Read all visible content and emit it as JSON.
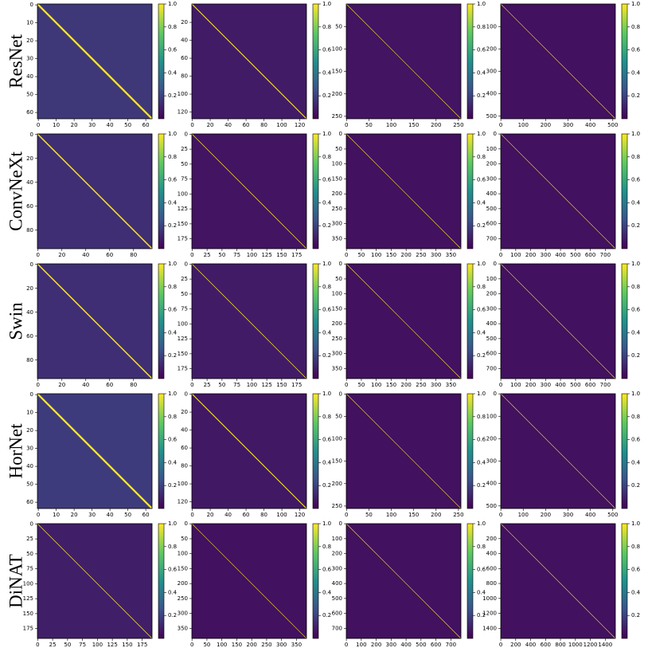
{
  "row_labels": [
    "ResNet",
    "ConvNeXt",
    "Swin",
    "HorNet",
    "DiNAT"
  ],
  "colormap": [
    "#440154",
    "#3b528b",
    "#21918c",
    "#5ec962",
    "#fde725"
  ],
  "chart_data": [
    {
      "type": "heatmap",
      "xlim": [
        -0.5,
        63.5
      ],
      "ylim": [
        -0.5,
        63.5
      ],
      "invert_y": true,
      "xticks": [
        0,
        10,
        20,
        30,
        40,
        50,
        60
      ],
      "yticks": [
        0,
        10,
        20,
        30,
        40,
        50,
        60
      ],
      "clim": [
        0,
        1
      ],
      "cticks": [
        0.2,
        0.4,
        0.6,
        0.8,
        {
          "value": 1,
          "label": "1.0"
        }
      ],
      "background": 0.17,
      "diagonal": 1
    },
    {
      "type": "heatmap",
      "xlim": [
        -0.5,
        127.5
      ],
      "ylim": [
        -0.5,
        127.5
      ],
      "invert_y": true,
      "xticks": [
        0,
        20,
        40,
        60,
        80,
        100,
        120
      ],
      "yticks": [
        20,
        40,
        60,
        80,
        100,
        120
      ],
      "clim": [
        0,
        1
      ],
      "cticks": [
        0.2,
        0.4,
        0.6,
        0.8,
        {
          "value": 1,
          "label": "1.0"
        }
      ],
      "background": 0.08,
      "diagonal": 1
    },
    {
      "type": "heatmap",
      "xlim": [
        -0.5,
        255.5
      ],
      "ylim": [
        -0.5,
        255.5
      ],
      "invert_y": true,
      "xticks": [
        0,
        50,
        100,
        150,
        200,
        250
      ],
      "yticks": [
        50,
        100,
        150,
        200,
        250
      ],
      "clim": [
        0,
        1
      ],
      "cticks": [
        0.2,
        0.4,
        0.6,
        0.8,
        {
          "value": 1,
          "label": "1.0"
        }
      ],
      "background": 0.06,
      "diagonal": 1
    },
    {
      "type": "heatmap",
      "xlim": [
        -0.5,
        511.5
      ],
      "ylim": [
        -0.5,
        511.5
      ],
      "invert_y": true,
      "xticks": [
        0,
        100,
        200,
        300,
        400,
        500
      ],
      "yticks": [
        100,
        200,
        300,
        400,
        500
      ],
      "clim": [
        0,
        1
      ],
      "cticks": [
        0.2,
        0.4,
        0.6,
        0.8,
        {
          "value": 1,
          "label": "1.0"
        }
      ],
      "background": 0.05,
      "diagonal": 1
    },
    {
      "type": "heatmap",
      "xlim": [
        -0.5,
        95.5
      ],
      "ylim": [
        -0.5,
        95.5
      ],
      "invert_y": true,
      "xticks": [
        0,
        20,
        40,
        60,
        80
      ],
      "yticks": [
        0,
        20,
        40,
        60,
        80
      ],
      "clim": [
        0,
        1
      ],
      "cticks": [
        0.2,
        0.4,
        0.6,
        0.8,
        {
          "value": 1,
          "label": "1.0"
        }
      ],
      "background": 0.14,
      "diagonal": 1
    },
    {
      "type": "heatmap",
      "xlim": [
        -0.5,
        191.5
      ],
      "ylim": [
        -0.5,
        191.5
      ],
      "invert_y": true,
      "xticks": [
        0,
        25,
        50,
        75,
        100,
        125,
        150,
        175
      ],
      "yticks": [
        0,
        25,
        50,
        75,
        100,
        125,
        150,
        175
      ],
      "clim": [
        0,
        1
      ],
      "cticks": [
        0.2,
        0.4,
        0.6,
        0.8,
        {
          "value": 1,
          "label": "1.0"
        }
      ],
      "background": 0.06,
      "diagonal": 1
    },
    {
      "type": "heatmap",
      "xlim": [
        -0.5,
        383.5
      ],
      "ylim": [
        -0.5,
        383.5
      ],
      "invert_y": true,
      "xticks": [
        0,
        50,
        100,
        150,
        200,
        250,
        300,
        350
      ],
      "yticks": [
        0,
        50,
        100,
        150,
        200,
        250,
        300,
        350
      ],
      "clim": [
        0,
        1
      ],
      "cticks": [
        0.2,
        0.4,
        0.6,
        0.8,
        {
          "value": 1,
          "label": "1.0"
        }
      ],
      "background": 0.05,
      "diagonal": 1
    },
    {
      "type": "heatmap",
      "xlim": [
        -0.5,
        767.5
      ],
      "ylim": [
        -0.5,
        767.5
      ],
      "invert_y": true,
      "xticks": [
        0,
        100,
        200,
        300,
        400,
        500,
        600,
        700
      ],
      "yticks": [
        0,
        100,
        200,
        300,
        400,
        500,
        600,
        700
      ],
      "clim": [
        0,
        1
      ],
      "cticks": [
        0.2,
        0.4,
        0.6,
        0.8,
        {
          "value": 1,
          "label": "1.0"
        }
      ],
      "background": 0.05,
      "diagonal": 1
    },
    {
      "type": "heatmap",
      "xlim": [
        -0.5,
        95.5
      ],
      "ylim": [
        -0.5,
        95.5
      ],
      "invert_y": true,
      "xticks": [
        0,
        20,
        40,
        60,
        80
      ],
      "yticks": [
        0,
        20,
        40,
        60,
        80
      ],
      "clim": [
        0,
        1
      ],
      "cticks": [
        0.2,
        0.4,
        0.6,
        0.8,
        {
          "value": 1,
          "label": "1.0"
        }
      ],
      "background": 0.14,
      "diagonal": 1
    },
    {
      "type": "heatmap",
      "xlim": [
        -0.5,
        191.5
      ],
      "ylim": [
        -0.5,
        191.5
      ],
      "invert_y": true,
      "xticks": [
        0,
        25,
        50,
        75,
        100,
        125,
        150,
        175
      ],
      "yticks": [
        0,
        25,
        50,
        75,
        100,
        125,
        150,
        175
      ],
      "clim": [
        0,
        1
      ],
      "cticks": [
        0.2,
        0.4,
        0.6,
        0.8,
        {
          "value": 1,
          "label": "1.0"
        }
      ],
      "background": 0.08,
      "diagonal": 1
    },
    {
      "type": "heatmap",
      "xlim": [
        -0.5,
        383.5
      ],
      "ylim": [
        -0.5,
        383.5
      ],
      "invert_y": true,
      "xticks": [
        0,
        50,
        100,
        150,
        200,
        250,
        300,
        350
      ],
      "yticks": [
        0,
        50,
        100,
        150,
        200,
        250,
        300,
        350
      ],
      "clim": [
        0,
        1
      ],
      "cticks": [
        0.2,
        0.4,
        0.6,
        0.8,
        {
          "value": 1,
          "label": "1.0"
        }
      ],
      "background": 0.05,
      "diagonal": 1
    },
    {
      "type": "heatmap",
      "xlim": [
        -0.5,
        767.5
      ],
      "ylim": [
        -0.5,
        767.5
      ],
      "invert_y": true,
      "xticks": [
        0,
        100,
        200,
        300,
        400,
        500,
        600,
        700
      ],
      "yticks": [
        0,
        100,
        200,
        300,
        400,
        500,
        600,
        700
      ],
      "clim": [
        0,
        1
      ],
      "cticks": [
        0.2,
        0.4,
        0.6,
        0.8,
        {
          "value": 1,
          "label": "1.0"
        }
      ],
      "background": 0.05,
      "diagonal": 1
    },
    {
      "type": "heatmap",
      "xlim": [
        -0.5,
        63.5
      ],
      "ylim": [
        -0.5,
        63.5
      ],
      "invert_y": true,
      "xticks": [
        0,
        10,
        20,
        30,
        40,
        50,
        60
      ],
      "yticks": [
        0,
        10,
        20,
        30,
        40,
        50,
        60
      ],
      "clim": [
        0,
        1
      ],
      "cticks": [
        0.2,
        0.4,
        0.6,
        0.8,
        {
          "value": 1,
          "label": "1.0"
        }
      ],
      "background": 0.18,
      "diagonal": 1
    },
    {
      "type": "heatmap",
      "xlim": [
        -0.5,
        127.5
      ],
      "ylim": [
        -0.5,
        127.5
      ],
      "invert_y": true,
      "xticks": [
        0,
        20,
        40,
        60,
        80,
        100,
        120
      ],
      "yticks": [
        0,
        20,
        40,
        60,
        80,
        100,
        120
      ],
      "clim": [
        0,
        1
      ],
      "cticks": [
        0.2,
        0.4,
        0.6,
        0.8,
        {
          "value": 1,
          "label": "1.0"
        }
      ],
      "background": 0.07,
      "diagonal": 1
    },
    {
      "type": "heatmap",
      "xlim": [
        -0.5,
        255.5
      ],
      "ylim": [
        -0.5,
        255.5
      ],
      "invert_y": true,
      "xticks": [
        0,
        50,
        100,
        150,
        200,
        250
      ],
      "yticks": [
        0,
        50,
        100,
        150,
        200,
        250
      ],
      "clim": [
        0,
        1
      ],
      "cticks": [
        0.2,
        0.4,
        0.6,
        0.8,
        {
          "value": 1,
          "label": "1.0"
        }
      ],
      "background": 0.05,
      "diagonal": 1
    },
    {
      "type": "heatmap",
      "xlim": [
        -0.5,
        511.5
      ],
      "ylim": [
        -0.5,
        511.5
      ],
      "invert_y": true,
      "xticks": [
        0,
        100,
        200,
        300,
        400,
        500
      ],
      "yticks": [
        0,
        100,
        200,
        300,
        400,
        500
      ],
      "clim": [
        0,
        1
      ],
      "cticks": [
        0.2,
        0.4,
        0.6,
        0.8,
        {
          "value": 1,
          "label": "1.0"
        }
      ],
      "background": 0.05,
      "diagonal": 1
    },
    {
      "type": "heatmap",
      "xlim": [
        -0.5,
        191.5
      ],
      "ylim": [
        -0.5,
        191.5
      ],
      "invert_y": true,
      "xticks": [
        0,
        25,
        50,
        75,
        100,
        125,
        150,
        175
      ],
      "yticks": [
        0,
        25,
        50,
        75,
        100,
        125,
        150,
        175
      ],
      "clim": [
        0,
        1
      ],
      "cticks": [
        0.2,
        0.4,
        0.6,
        0.8,
        {
          "value": 1,
          "label": "1.0"
        }
      ],
      "background": 0.09,
      "diagonal": 1
    },
    {
      "type": "heatmap",
      "xlim": [
        -0.5,
        383.5
      ],
      "ylim": [
        -0.5,
        383.5
      ],
      "invert_y": true,
      "xticks": [
        0,
        50,
        100,
        150,
        200,
        250,
        300,
        350
      ],
      "yticks": [
        0,
        50,
        100,
        150,
        200,
        250,
        300,
        350
      ],
      "clim": [
        0,
        1
      ],
      "cticks": [
        0.2,
        0.4,
        0.6,
        0.8,
        {
          "value": 1,
          "label": "1.0"
        }
      ],
      "background": 0.05,
      "diagonal": 1
    },
    {
      "type": "heatmap",
      "xlim": [
        -0.5,
        767.5
      ],
      "ylim": [
        -0.5,
        767.5
      ],
      "invert_y": true,
      "xticks": [
        0,
        100,
        200,
        300,
        400,
        500,
        600,
        700
      ],
      "yticks": [
        0,
        100,
        200,
        300,
        400,
        500,
        600,
        700
      ],
      "clim": [
        0,
        1
      ],
      "cticks": [
        0.2,
        0.4,
        0.6,
        0.8,
        {
          "value": 1,
          "label": "1.0"
        }
      ],
      "background": 0.05,
      "diagonal": 1
    },
    {
      "type": "heatmap",
      "xlim": [
        -0.5,
        1535.5
      ],
      "ylim": [
        -0.5,
        1535.5
      ],
      "invert_y": true,
      "xticks": [
        0,
        200,
        400,
        600,
        800,
        1000,
        1200,
        1400
      ],
      "yticks": [
        200,
        400,
        600,
        800,
        1000,
        1200,
        1400
      ],
      "clim": [
        0,
        1
      ],
      "cticks": [
        0.2,
        0.4,
        0.6,
        0.8,
        {
          "value": 1,
          "label": "1.0"
        }
      ],
      "background": 0.05,
      "diagonal": 1
    }
  ]
}
